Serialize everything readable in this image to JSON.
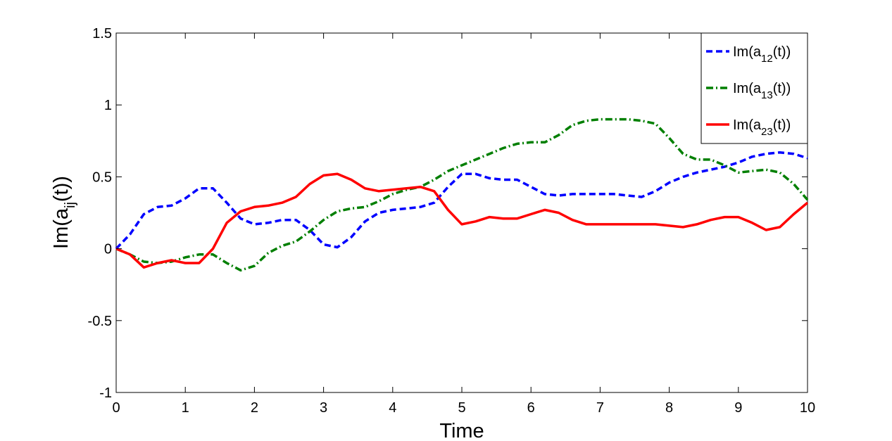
{
  "chart_data": {
    "type": "line",
    "xlabel": "Time",
    "ylabel": {
      "base": "Im(a",
      "sub": "ij",
      "tail": "(t))"
    },
    "xlim": [
      0,
      10
    ],
    "ylim": [
      -1,
      1.5
    ],
    "xticks": [
      0,
      1,
      2,
      3,
      4,
      5,
      6,
      7,
      8,
      9,
      10
    ],
    "yticks": [
      -1,
      -0.5,
      0,
      0.5,
      1,
      1.5
    ],
    "xtick_labels": [
      "0",
      "1",
      "2",
      "3",
      "4",
      "5",
      "6",
      "7",
      "8",
      "9",
      "10"
    ],
    "ytick_labels": [
      "-1",
      "-0.5",
      "0",
      "0.5",
      "1",
      "1.5"
    ],
    "grid": false,
    "legend_position": "top-right",
    "series": [
      {
        "name": "Im(a12(t))",
        "legend": {
          "base": "Im(a",
          "sub": "12",
          "tail": "(t))"
        },
        "color": "#0000ff",
        "style": "dashed",
        "x": [
          0,
          0.2,
          0.4,
          0.6,
          0.8,
          1.0,
          1.2,
          1.4,
          1.6,
          1.8,
          2.0,
          2.2,
          2.4,
          2.6,
          2.8,
          3.0,
          3.2,
          3.4,
          3.6,
          3.8,
          4.0,
          4.2,
          4.4,
          4.6,
          4.8,
          5.0,
          5.2,
          5.4,
          5.6,
          5.8,
          6.0,
          6.2,
          6.4,
          6.6,
          6.8,
          7.0,
          7.2,
          7.4,
          7.6,
          7.8,
          8.0,
          8.2,
          8.4,
          8.6,
          8.8,
          9.0,
          9.2,
          9.4,
          9.6,
          9.8,
          10.0
        ],
        "y": [
          0.0,
          0.1,
          0.24,
          0.29,
          0.3,
          0.35,
          0.42,
          0.42,
          0.32,
          0.21,
          0.17,
          0.18,
          0.2,
          0.2,
          0.13,
          0.03,
          0.01,
          0.08,
          0.19,
          0.25,
          0.27,
          0.28,
          0.29,
          0.32,
          0.43,
          0.52,
          0.52,
          0.49,
          0.48,
          0.48,
          0.43,
          0.38,
          0.37,
          0.38,
          0.38,
          0.38,
          0.38,
          0.37,
          0.36,
          0.4,
          0.46,
          0.5,
          0.53,
          0.55,
          0.57,
          0.6,
          0.64,
          0.66,
          0.67,
          0.66,
          0.63
        ]
      },
      {
        "name": "Im(a13(t))",
        "legend": {
          "base": "Im(a",
          "sub": "13",
          "tail": "(t))"
        },
        "color": "#007f00",
        "style": "dashdot",
        "x": [
          0,
          0.2,
          0.4,
          0.6,
          0.8,
          1.0,
          1.2,
          1.4,
          1.6,
          1.8,
          2.0,
          2.2,
          2.4,
          2.6,
          2.8,
          3.0,
          3.2,
          3.4,
          3.6,
          3.8,
          4.0,
          4.2,
          4.4,
          4.6,
          4.8,
          5.0,
          5.2,
          5.4,
          5.6,
          5.8,
          6.0,
          6.2,
          6.4,
          6.6,
          6.8,
          7.0,
          7.2,
          7.4,
          7.6,
          7.8,
          8.0,
          8.2,
          8.4,
          8.6,
          8.8,
          9.0,
          9.2,
          9.4,
          9.6,
          9.8,
          10.0
        ],
        "y": [
          0.0,
          -0.04,
          -0.09,
          -0.1,
          -0.09,
          -0.06,
          -0.04,
          -0.04,
          -0.1,
          -0.15,
          -0.12,
          -0.03,
          0.02,
          0.05,
          0.12,
          0.2,
          0.26,
          0.28,
          0.29,
          0.33,
          0.38,
          0.41,
          0.43,
          0.48,
          0.54,
          0.58,
          0.62,
          0.66,
          0.7,
          0.73,
          0.74,
          0.74,
          0.79,
          0.86,
          0.89,
          0.9,
          0.9,
          0.9,
          0.89,
          0.87,
          0.77,
          0.66,
          0.62,
          0.62,
          0.58,
          0.53,
          0.54,
          0.55,
          0.53,
          0.45,
          0.34
        ]
      },
      {
        "name": "Im(a23(t))",
        "legend": {
          "base": "Im(a",
          "sub": "23",
          "tail": "(t))"
        },
        "color": "#ff0000",
        "style": "solid",
        "x": [
          0,
          0.2,
          0.4,
          0.6,
          0.8,
          1.0,
          1.2,
          1.4,
          1.6,
          1.8,
          2.0,
          2.2,
          2.4,
          2.6,
          2.8,
          3.0,
          3.2,
          3.4,
          3.6,
          3.8,
          4.0,
          4.2,
          4.4,
          4.6,
          4.8,
          5.0,
          5.2,
          5.4,
          5.6,
          5.8,
          6.0,
          6.2,
          6.4,
          6.6,
          6.8,
          7.0,
          7.2,
          7.4,
          7.6,
          7.8,
          8.0,
          8.2,
          8.4,
          8.6,
          8.8,
          9.0,
          9.2,
          9.4,
          9.6,
          9.8,
          10.0
        ],
        "y": [
          0.0,
          -0.04,
          -0.13,
          -0.1,
          -0.08,
          -0.1,
          -0.1,
          0.0,
          0.18,
          0.26,
          0.29,
          0.3,
          0.32,
          0.36,
          0.45,
          0.51,
          0.52,
          0.48,
          0.42,
          0.4,
          0.41,
          0.42,
          0.43,
          0.4,
          0.27,
          0.17,
          0.19,
          0.22,
          0.21,
          0.21,
          0.24,
          0.27,
          0.25,
          0.2,
          0.17,
          0.17,
          0.17,
          0.17,
          0.17,
          0.17,
          0.16,
          0.15,
          0.17,
          0.2,
          0.22,
          0.22,
          0.18,
          0.13,
          0.15,
          0.24,
          0.32
        ]
      }
    ]
  }
}
